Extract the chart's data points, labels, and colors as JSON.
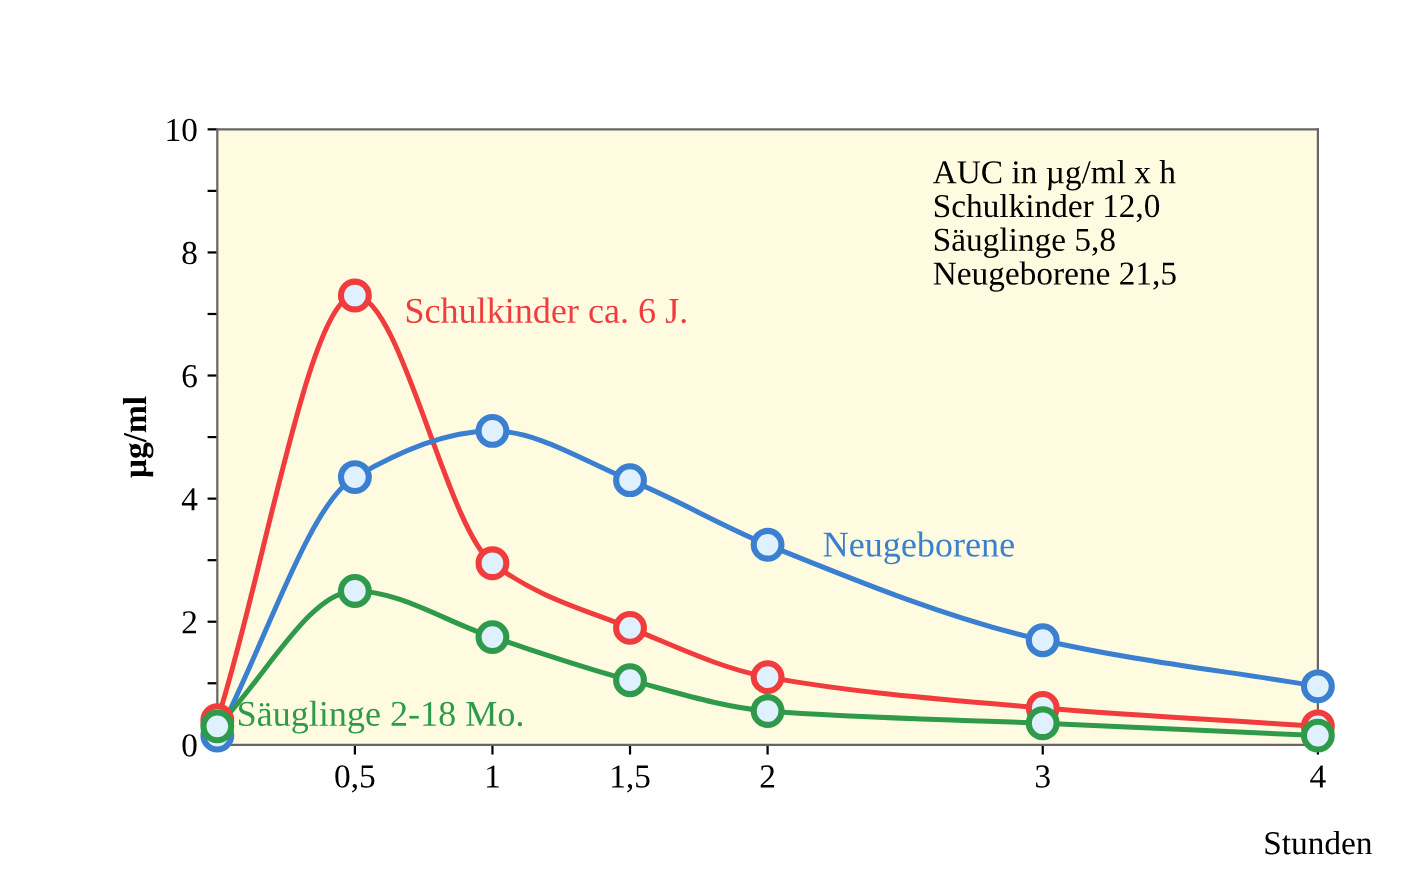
{
  "chart_data": {
    "type": "line",
    "xlabel": "Stunden",
    "ylabel": "µg/ml",
    "xlim": [
      0,
      4
    ],
    "ylim": [
      0,
      10
    ],
    "xticks": [
      {
        "value": 0.5,
        "label": "0,5"
      },
      1,
      {
        "value": 1.5,
        "label": "1,5"
      },
      2,
      3,
      4
    ],
    "yticks": [
      0,
      {
        "value": 1,
        "label": null
      },
      2,
      {
        "value": 3,
        "label": null
      },
      4,
      {
        "value": 5,
        "label": null
      },
      6,
      {
        "value": 7,
        "label": null
      },
      8,
      {
        "value": 9,
        "label": null
      },
      10
    ],
    "marker": "circle",
    "line_style": "solid",
    "grid": false,
    "x": [
      0,
      0.5,
      1,
      1.5,
      2,
      3,
      4
    ],
    "series": [
      {
        "name": "Schulkinder ca. 6 J.",
        "color": "#f03c3c",
        "values": [
          0.4,
          7.3,
          2.95,
          1.9,
          1.1,
          0.6,
          0.3
        ]
      },
      {
        "name": "Neugeborene",
        "color": "#3a7fd0",
        "values": [
          0.15,
          4.35,
          5.1,
          4.3,
          3.25,
          1.7,
          0.95
        ]
      },
      {
        "name": "Säuglinge 2-18 Mo.",
        "color": "#2e9a4a",
        "values": [
          0.3,
          2.5,
          1.75,
          1.05,
          0.55,
          0.35,
          0.15
        ]
      }
    ],
    "annotations": [
      "AUC in µg/ml x h",
      "Schulkinder 12,0",
      "Säuglinge 5,8",
      "Neugeborene 21,5"
    ]
  }
}
